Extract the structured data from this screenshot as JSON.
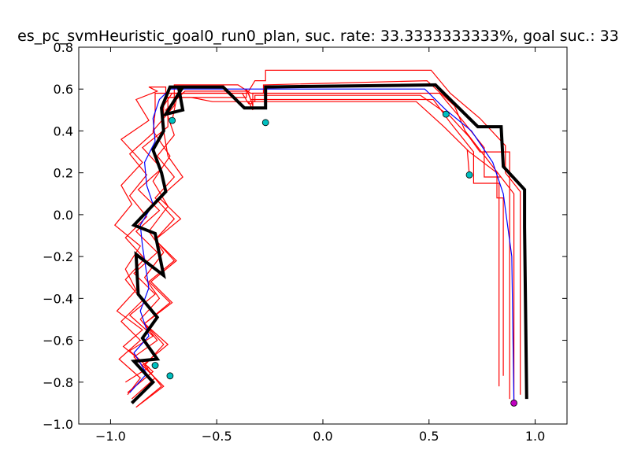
{
  "chart_data": {
    "type": "line",
    "title": "es_pc_svmHeuristic_goal0_run0_plan, suc. rate: 33.3333333333%, goal suc.: 33",
    "xlim": [
      -1.15,
      1.15
    ],
    "ylim": [
      -1.0,
      0.8
    ],
    "x_ticks": [
      "−1.0",
      "−0.5",
      "0.0",
      "0.5",
      "1.0"
    ],
    "x_tick_values": [
      -1.0,
      -0.5,
      0.0,
      0.5,
      1.0
    ],
    "y_ticks": [
      "−1.0",
      "−0.8",
      "−0.6",
      "−0.4",
      "−0.2",
      "0.0",
      "0.2",
      "0.4",
      "0.6",
      "0.8"
    ],
    "y_tick_values": [
      -1.0,
      -0.8,
      -0.6,
      -0.4,
      -0.2,
      0.0,
      0.2,
      0.4,
      0.6,
      0.8
    ],
    "grid": false,
    "colors": {
      "plan": "#000000",
      "nominal": "#0000ff",
      "sample": "#ff0000",
      "goal_marker": "#00bfbf",
      "start_marker": "#bf00bf"
    },
    "plan": {
      "x": [
        -0.9,
        -0.8,
        -0.89,
        -0.78,
        -0.85,
        -0.78,
        -0.87,
        -0.88,
        -0.75,
        -0.79,
        -0.89,
        -0.74,
        -0.76,
        -0.8,
        -0.75,
        -0.76,
        -0.72,
        -0.66,
        -0.74,
        -0.66,
        -0.68,
        -0.47,
        -0.37,
        -0.27,
        -0.27,
        0.53,
        0.73,
        0.84,
        0.85,
        0.95,
        0.95,
        0.96
      ],
      "y": [
        -0.9,
        -0.8,
        -0.7,
        -0.69,
        -0.59,
        -0.49,
        -0.38,
        -0.19,
        -0.29,
        -0.09,
        -0.05,
        0.11,
        0.2,
        0.31,
        0.4,
        0.51,
        0.61,
        0.61,
        0.48,
        0.5,
        0.61,
        0.61,
        0.51,
        0.51,
        0.61,
        0.62,
        0.42,
        0.42,
        0.23,
        0.12,
        -0.06,
        -0.88
      ]
    },
    "nominal": {
      "x": [
        -0.91,
        -0.83,
        -0.89,
        -0.82,
        -0.86,
        -0.82,
        -0.85,
        -0.86,
        -0.8,
        -0.83,
        -0.84,
        -0.79,
        -0.8,
        -0.77,
        -0.72,
        -0.42,
        -0.29,
        0.48,
        0.58,
        0.7,
        0.8,
        0.85,
        0.89,
        0.9
      ],
      "y": [
        -0.85,
        -0.76,
        -0.66,
        -0.58,
        -0.46,
        -0.35,
        -0.15,
        -0.05,
        0.05,
        0.14,
        0.25,
        0.35,
        0.46,
        0.55,
        0.6,
        0.6,
        0.6,
        0.6,
        0.5,
        0.4,
        0.25,
        0.1,
        -0.2,
        -0.9
      ]
    },
    "samples": [
      {
        "x": [
          -0.93,
          -0.82,
          -0.94,
          -0.85,
          -0.97,
          -0.88,
          -0.93,
          -0.86,
          -0.98,
          -0.9,
          -0.95,
          -0.85,
          -0.95,
          -0.82,
          -0.88,
          -0.78,
          -0.82,
          -0.74,
          -0.74,
          -0.36,
          -0.36,
          -0.34,
          0.52,
          0.6,
          0.71,
          0.71,
          0.83,
          0.83
        ],
        "y": [
          -0.8,
          -0.73,
          -0.63,
          -0.55,
          -0.46,
          -0.36,
          -0.26,
          -0.15,
          -0.05,
          0.05,
          0.14,
          0.25,
          0.36,
          0.45,
          0.55,
          0.59,
          0.61,
          0.61,
          0.56,
          0.56,
          0.6,
          0.55,
          0.55,
          0.44,
          0.3,
          0.15,
          0.15,
          -0.82
        ]
      },
      {
        "x": [
          -0.92,
          -0.8,
          -0.91,
          -0.8,
          -0.91,
          -0.79,
          -0.89,
          -0.78,
          -0.88,
          -0.77,
          -0.87,
          -0.76,
          -0.85,
          -0.73,
          -0.73,
          -0.62,
          -0.52,
          -0.41,
          -0.32,
          -0.32,
          0.46,
          0.6,
          0.69,
          0.74,
          0.88,
          0.88
        ],
        "y": [
          -0.85,
          -0.75,
          -0.65,
          -0.58,
          -0.48,
          -0.38,
          -0.28,
          -0.18,
          -0.08,
          0.02,
          0.12,
          0.22,
          0.32,
          0.42,
          0.56,
          0.56,
          0.54,
          0.54,
          0.54,
          0.57,
          0.57,
          0.47,
          0.37,
          0.3,
          0.3,
          -0.88
        ]
      },
      {
        "x": [
          -0.9,
          -0.79,
          -0.89,
          -0.78,
          -0.86,
          -0.77,
          -0.84,
          -0.75,
          -0.82,
          -0.73,
          -0.8,
          -0.72,
          -0.8,
          -0.7,
          -0.7,
          -0.4,
          -0.34,
          -0.28,
          -0.28,
          0.49,
          0.62,
          0.67,
          0.9,
          0.9
        ],
        "y": [
          -0.88,
          -0.78,
          -0.68,
          -0.6,
          -0.5,
          -0.4,
          -0.3,
          -0.18,
          -0.08,
          0.04,
          0.16,
          0.28,
          0.4,
          0.52,
          0.62,
          0.62,
          0.58,
          0.58,
          0.62,
          0.64,
          0.52,
          0.4,
          0.1,
          -0.9
        ]
      },
      {
        "x": [
          -0.92,
          -0.86,
          -0.96,
          -0.86,
          -0.95,
          -0.85,
          -0.93,
          -0.84,
          -0.93,
          -0.83,
          -0.91,
          -0.83,
          -0.91,
          -0.8,
          -0.79,
          -0.79,
          -0.62,
          -0.38,
          -0.35,
          -0.33,
          -0.33,
          -0.35,
          0.44,
          0.57,
          0.69,
          0.82,
          0.82,
          0.85,
          0.85
        ],
        "y": [
          -0.86,
          -0.78,
          -0.69,
          -0.6,
          -0.51,
          -0.41,
          -0.31,
          -0.21,
          -0.11,
          -0.01,
          0.09,
          0.19,
          0.29,
          0.39,
          0.49,
          0.58,
          0.58,
          0.58,
          0.53,
          0.53,
          0.5,
          0.54,
          0.54,
          0.42,
          0.3,
          0.2,
          0.08,
          0.08,
          -0.77
        ]
      },
      {
        "x": [
          -0.88,
          -0.76,
          -0.84,
          -0.75,
          -0.84,
          -0.72,
          -0.82,
          -0.7,
          -0.79,
          -0.7,
          -0.79,
          -0.7,
          -0.78,
          -0.7,
          -0.74,
          -0.65,
          -0.53,
          -0.35,
          -0.32,
          -0.27,
          -0.27,
          0.51,
          0.6,
          0.74,
          0.86,
          0.86,
          0.93,
          0.93
        ],
        "y": [
          -0.92,
          -0.82,
          -0.72,
          -0.62,
          -0.52,
          -0.42,
          -0.32,
          -0.22,
          -0.12,
          -0.02,
          0.08,
          0.18,
          0.28,
          0.38,
          0.5,
          0.59,
          0.59,
          0.59,
          0.64,
          0.64,
          0.69,
          0.69,
          0.58,
          0.46,
          0.33,
          0.2,
          0.11,
          -0.86
        ]
      },
      {
        "x": [
          -0.88,
          -0.75,
          -0.85,
          -0.73,
          -0.84,
          -0.71,
          -0.81,
          -0.69,
          -0.79,
          -0.67,
          -0.77,
          -0.66,
          -0.73,
          -0.75,
          -0.75,
          -0.71,
          -0.44,
          -0.35,
          -0.33,
          -0.33,
          0.55,
          0.65,
          0.76,
          0.76,
          0.84
        ],
        "y": [
          -0.92,
          -0.82,
          -0.72,
          -0.62,
          -0.52,
          -0.42,
          -0.32,
          -0.22,
          -0.12,
          -0.02,
          0.08,
          0.18,
          0.28,
          0.4,
          0.52,
          0.58,
          0.58,
          0.58,
          0.52,
          0.58,
          0.58,
          0.46,
          0.32,
          0.18,
          0.18
        ]
      }
    ],
    "goal_markers": {
      "x": [
        -0.71,
        -0.27,
        0.58,
        0.69,
        -0.79,
        -0.72
      ],
      "y": [
        0.45,
        0.44,
        0.48,
        0.19,
        -0.72,
        -0.77
      ]
    },
    "goal_tethers": [
      {
        "x": [
          -0.71,
          -0.69
        ],
        "y": [
          0.45,
          0.55
        ]
      },
      {
        "x": [
          0.69,
          0.68
        ],
        "y": [
          0.19,
          0.31
        ]
      }
    ],
    "start_marker": {
      "x": 0.9,
      "y": -0.9
    }
  }
}
